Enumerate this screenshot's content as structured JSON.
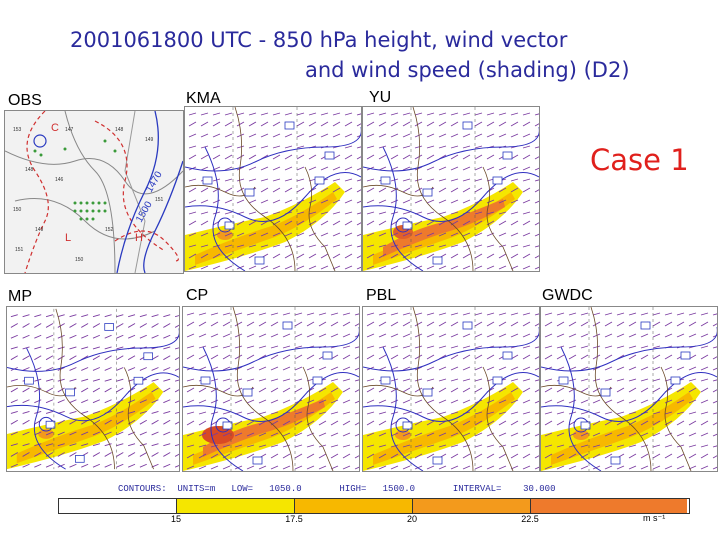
{
  "title": {
    "line1": "2001061800 UTC - 850 hPa height, wind vector",
    "line2": "and wind speed (shading) (D2)"
  },
  "case_label": "Case 1",
  "panels": {
    "obs": "OBS",
    "kma": "KMA",
    "yu": "YU",
    "mp": "MP",
    "cp": "CP",
    "pbl": "PBL",
    "gwdc": "GWDC"
  },
  "obs_contours": [
    "1470",
    "1500"
  ],
  "colorbar": {
    "header": "CONTOURS:  UNITS=m   LOW=   1050.0       HIGH=   1500.0       INTERVAL=    30.000",
    "ticks": [
      "15",
      "17.5",
      "20",
      "22.5"
    ],
    "units": "m s⁻¹",
    "colors": [
      "#ffffff",
      "#f5e600",
      "#f7b800",
      "#f39a1c",
      "#ee7a2c"
    ]
  }
}
